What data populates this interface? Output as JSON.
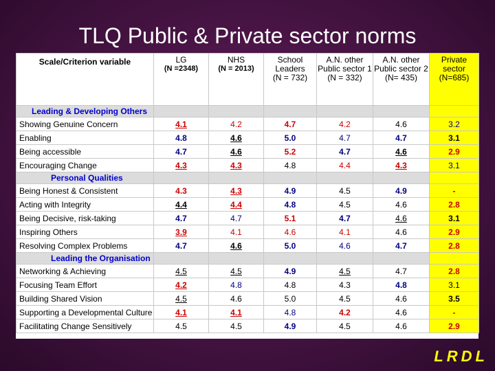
{
  "title": "TLQ Public & Private sector norms",
  "logo": "LRDL",
  "columns": [
    {
      "label": "Scale/Criterion variable"
    },
    {
      "label": "LG",
      "n": "(N =2348)"
    },
    {
      "label": "NHS",
      "n": "(N = 2013)"
    },
    {
      "label": "School Leaders",
      "n": "(N = 732)"
    },
    {
      "label": "A.N. other Public sector 1",
      "n": "(N = 332)"
    },
    {
      "label": "A.N. other Public sector 2",
      "n": "(N= 435)"
    },
    {
      "label": "Private sector",
      "n": "(N=685)"
    }
  ],
  "sections": [
    {
      "label": "Leading & Developing Others",
      "rows": [
        {
          "name": "Showing Genuine Concern",
          "values": [
            "4.1",
            "4.2",
            "4.7",
            "4.2",
            "4.6",
            "3.2"
          ],
          "styles": [
            "red b u",
            "red",
            "red b",
            "red",
            "black",
            "blue"
          ]
        },
        {
          "name": "Enabling",
          "values": [
            "4.8",
            "4.6",
            "5.0",
            "4.7",
            "4.7",
            "3.1"
          ],
          "styles": [
            "blue b",
            "black b u",
            "blue b",
            "blue",
            "blue b",
            "black b"
          ]
        },
        {
          "name": "Being accessible",
          "values": [
            "4.7",
            "4.6",
            "5.2",
            "4.7",
            "4.6",
            "2.9"
          ],
          "styles": [
            "blue b",
            "black b u",
            "red b",
            "blue b",
            "black b u",
            "red b"
          ]
        },
        {
          "name": "Encouraging Change",
          "values": [
            "4.3",
            "4.3",
            "4.8",
            "4.4",
            "4.3",
            "3.1"
          ],
          "styles": [
            "red b u",
            "red b u",
            "black",
            "red",
            "red b u",
            "blue"
          ]
        }
      ]
    },
    {
      "label": "Personal Qualities",
      "rows": [
        {
          "name": "Being Honest & Consistent",
          "values": [
            "4.3",
            "4.3",
            "4.9",
            "4.5",
            "4.9",
            "-"
          ],
          "styles": [
            "red b",
            "red b u",
            "blue b",
            "black",
            "blue b",
            "red b"
          ]
        },
        {
          "name": "Acting with Integrity",
          "values": [
            "4.4",
            "4.4",
            "4.8",
            "4.5",
            "4.6",
            "2.8"
          ],
          "styles": [
            "black b u",
            "red b u",
            "blue b",
            "black",
            "black",
            "red b"
          ]
        },
        {
          "name": "Being Decisive, risk-taking",
          "values": [
            "4.7",
            "4.7",
            "5.1",
            "4.7",
            "4.6",
            "3.1"
          ],
          "styles": [
            "blue b",
            "blue",
            "red b",
            "blue b",
            "black u",
            "black b"
          ]
        },
        {
          "name": "Inspiring Others",
          "values": [
            "3.9",
            "4.1",
            "4.6",
            "4.1",
            "4.6",
            "2.9"
          ],
          "styles": [
            "red b u",
            "red",
            "red",
            "red",
            "black",
            "red b"
          ]
        },
        {
          "name": "Resolving Complex Problems",
          "values": [
            "4.7",
            "4.6",
            "5.0",
            "4.6",
            "4.7",
            "2.8"
          ],
          "styles": [
            "blue b",
            "black b u",
            "blue b",
            "blue",
            "blue b",
            "red b"
          ]
        }
      ]
    },
    {
      "label": "Leading the Organisation",
      "rows": [
        {
          "name": "Networking & Achieving",
          "values": [
            "4.5",
            "4.5",
            "4.9",
            "4.5",
            "4.7",
            "2.8"
          ],
          "styles": [
            "black u",
            "black u",
            "blue b",
            "black u",
            "black",
            "red b"
          ]
        },
        {
          "name": "Focusing Team Effort",
          "values": [
            "4.2",
            "4.8",
            "4.8",
            "4.3",
            "4.8",
            "3.1"
          ],
          "styles": [
            "red b u",
            "blue",
            "black",
            "black",
            "blue b",
            "black"
          ]
        },
        {
          "name": "Building Shared Vision",
          "values": [
            "4.5",
            "4.6",
            "5.0",
            "4.5",
            "4.6",
            "3.5"
          ],
          "styles": [
            "black u",
            "black",
            "black",
            "black",
            "black",
            "black b"
          ]
        },
        {
          "name": "Supporting a Developmental Culture",
          "values": [
            "4.1",
            "4.1",
            "4.8",
            "4.2",
            "4.6",
            "-"
          ],
          "styles": [
            "red b u",
            "red b u",
            "blue",
            "red b",
            "black",
            "red b"
          ]
        },
        {
          "name": "Facilitating Change Sensitively",
          "values": [
            "4.5",
            "4.5",
            "4.9",
            "4.5",
            "4.6",
            "2.9"
          ],
          "styles": [
            "black",
            "black",
            "blue b",
            "black",
            "black",
            "red b"
          ]
        }
      ]
    }
  ]
}
